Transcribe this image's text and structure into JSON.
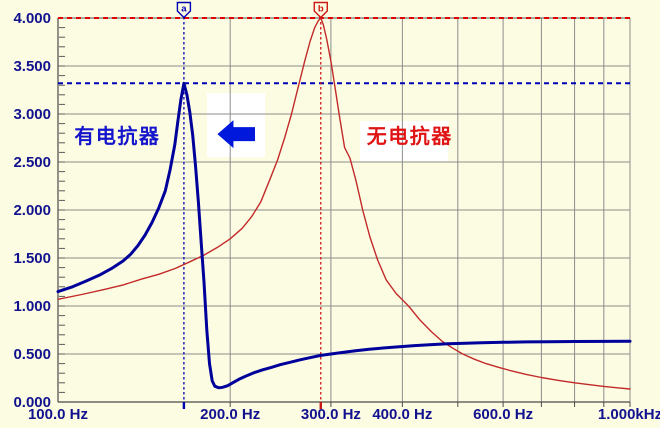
{
  "chart_data": {
    "type": "line",
    "background": "#FCFCE2",
    "grid_color": "#8C8C8C",
    "axis_color": "#4A4A4A",
    "minor_tick_color": "#5A5A5A",
    "x_axis": {
      "scale": "log",
      "min_hz": 100,
      "max_hz": 1000,
      "unit": "Hz",
      "gridlines_hz": [
        200,
        300,
        400,
        500,
        600,
        700,
        800,
        900,
        1000
      ],
      "ticks": [
        {
          "hz": 100,
          "label": "100.0 Hz"
        },
        {
          "hz": 200,
          "label": "200.0 Hz"
        },
        {
          "hz": 300,
          "label": "300.0 Hz"
        },
        {
          "hz": 400,
          "label": "400.0 Hz"
        },
        {
          "hz": 600,
          "label": "600.0 Hz"
        },
        {
          "hz": 1000,
          "label": "1.000kHz"
        }
      ],
      "label_color": "#12128F"
    },
    "y_axis": {
      "min": 0,
      "max": 4,
      "major_step": 0.5,
      "minor_step": 0.1,
      "ticks": [
        {
          "v": 4.0,
          "label": "4.000"
        },
        {
          "v": 3.5,
          "label": "3.500"
        },
        {
          "v": 3.0,
          "label": "3.000"
        },
        {
          "v": 2.5,
          "label": "2.500"
        },
        {
          "v": 2.0,
          "label": "2.000"
        },
        {
          "v": 1.5,
          "label": "1.500"
        },
        {
          "v": 1.0,
          "label": "1.000"
        },
        {
          "v": 0.5,
          "label": "0.500"
        },
        {
          "v": 0.0,
          "label": "0.000"
        }
      ],
      "label_color": "#12128F"
    },
    "series": [
      {
        "id": "without-reactor",
        "name": "无电抗器",
        "color": "#C22A2A",
        "width": 1.4,
        "points": [
          [
            100,
            1.07
          ],
          [
            110,
            1.12
          ],
          [
            120,
            1.17
          ],
          [
            130,
            1.22
          ],
          [
            140,
            1.28
          ],
          [
            150,
            1.33
          ],
          [
            160,
            1.39
          ],
          [
            170,
            1.46
          ],
          [
            180,
            1.53
          ],
          [
            190,
            1.61
          ],
          [
            200,
            1.7
          ],
          [
            210,
            1.81
          ],
          [
            218,
            1.93
          ],
          [
            226,
            2.08
          ],
          [
            234,
            2.3
          ],
          [
            242,
            2.52
          ],
          [
            249,
            2.75
          ],
          [
            256,
            3.0
          ],
          [
            263,
            3.28
          ],
          [
            270,
            3.55
          ],
          [
            276,
            3.76
          ],
          [
            281,
            3.9
          ],
          [
            285,
            3.97
          ],
          [
            288,
            4.0
          ],
          [
            291,
            3.93
          ],
          [
            295,
            3.78
          ],
          [
            300,
            3.55
          ],
          [
            305,
            3.28
          ],
          [
            310,
            3.0
          ],
          [
            317,
            2.65
          ],
          [
            324,
            2.54
          ],
          [
            332,
            2.3
          ],
          [
            341,
            2.0
          ],
          [
            351,
            1.72
          ],
          [
            362,
            1.48
          ],
          [
            375,
            1.27
          ],
          [
            390,
            1.13
          ],
          [
            410,
            1.0
          ],
          [
            430,
            0.85
          ],
          [
            450,
            0.73
          ],
          [
            470,
            0.63
          ],
          [
            490,
            0.56
          ],
          [
            510,
            0.5
          ],
          [
            535,
            0.445
          ],
          [
            560,
            0.4
          ],
          [
            590,
            0.36
          ],
          [
            620,
            0.325
          ],
          [
            660,
            0.285
          ],
          [
            700,
            0.255
          ],
          [
            750,
            0.225
          ],
          [
            800,
            0.2
          ],
          [
            850,
            0.18
          ],
          [
            900,
            0.162
          ],
          [
            950,
            0.148
          ],
          [
            1000,
            0.135
          ]
        ]
      },
      {
        "id": "with-reactor",
        "name": "有电抗器",
        "color": "#00009B",
        "width": 3,
        "points": [
          [
            100,
            1.15
          ],
          [
            106,
            1.2
          ],
          [
            112,
            1.26
          ],
          [
            118,
            1.32
          ],
          [
            124,
            1.39
          ],
          [
            130,
            1.47
          ],
          [
            134,
            1.54
          ],
          [
            138,
            1.63
          ],
          [
            142,
            1.74
          ],
          [
            146,
            1.87
          ],
          [
            150,
            2.02
          ],
          [
            154,
            2.2
          ],
          [
            157,
            2.42
          ],
          [
            160,
            2.68
          ],
          [
            162,
            2.92
          ],
          [
            164,
            3.15
          ],
          [
            166,
            3.32
          ],
          [
            168,
            3.2
          ],
          [
            170,
            3.02
          ],
          [
            172,
            2.78
          ],
          [
            174,
            2.45
          ],
          [
            176,
            2.08
          ],
          [
            178,
            1.66
          ],
          [
            180,
            1.25
          ],
          [
            182,
            0.75
          ],
          [
            184,
            0.4
          ],
          [
            186,
            0.22
          ],
          [
            188,
            0.165
          ],
          [
            191,
            0.148
          ],
          [
            194,
            0.153
          ],
          [
            198,
            0.17
          ],
          [
            202,
            0.2
          ],
          [
            207,
            0.235
          ],
          [
            213,
            0.27
          ],
          [
            220,
            0.305
          ],
          [
            228,
            0.335
          ],
          [
            236,
            0.36
          ],
          [
            245,
            0.39
          ],
          [
            255,
            0.415
          ],
          [
            265,
            0.44
          ],
          [
            275,
            0.46
          ],
          [
            288,
            0.485
          ],
          [
            300,
            0.5
          ],
          [
            315,
            0.517
          ],
          [
            330,
            0.532
          ],
          [
            350,
            0.55
          ],
          [
            370,
            0.563
          ],
          [
            395,
            0.576
          ],
          [
            420,
            0.588
          ],
          [
            450,
            0.598
          ],
          [
            480,
            0.606
          ],
          [
            515,
            0.612
          ],
          [
            550,
            0.617
          ],
          [
            600,
            0.622
          ],
          [
            660,
            0.626
          ],
          [
            720,
            0.628
          ],
          [
            800,
            0.63
          ],
          [
            900,
            0.631
          ],
          [
            1000,
            0.632
          ]
        ]
      }
    ],
    "reference_lines": [
      {
        "value": 4.0,
        "color": "#E00000",
        "dash": "5 4",
        "width": 2
      },
      {
        "value": 3.32,
        "color": "#0000B4",
        "dash": "5 4",
        "width": 2
      }
    ],
    "cursors": [
      {
        "label": "a",
        "hz": 166,
        "color": "#0000B4"
      },
      {
        "label": "b",
        "hz": 288,
        "color": "#CC1616"
      }
    ],
    "annotations": {
      "labels": [
        {
          "text": "有电抗器",
          "hz": 127,
          "v": 2.77,
          "color": "#1414CC"
        },
        {
          "text": "无电抗器",
          "hz": 412,
          "v": 2.77,
          "color": "#E01414"
        }
      ],
      "arrow": {
        "dir": "left",
        "tip_hz": 190,
        "tail_hz": 221,
        "v": 2.79,
        "head_h": 28,
        "shaft_h": 14,
        "color": "#0018DC"
      },
      "white_boxes": [
        {
          "f1": 182.2,
          "f2": 230.1,
          "v_top": 3.219,
          "v_bottom": 2.552
        },
        {
          "f1": 337.3,
          "f2": 480.8,
          "v_top": 2.927,
          "v_bottom": 2.51
        }
      ]
    }
  }
}
